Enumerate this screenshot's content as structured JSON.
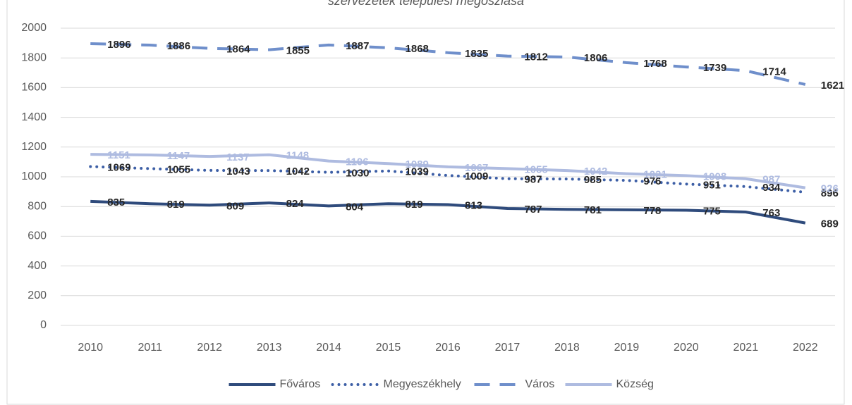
{
  "chart_data": {
    "type": "line",
    "title": "szervezetek települési megoszlása",
    "categories": [
      "2010",
      "2011",
      "2012",
      "2013",
      "2014",
      "2015",
      "2016",
      "2017",
      "2018",
      "2019",
      "2020",
      "2021",
      "2022"
    ],
    "series": [
      {
        "name": "Főváros",
        "color": "#2f4b7c",
        "dash": "solid",
        "label_color": "#262626",
        "values": [
          835,
          819,
          809,
          824,
          804,
          819,
          813,
          787,
          781,
          778,
          775,
          763,
          689
        ]
      },
      {
        "name": "Megyeszékhely",
        "color": "#3d5fa6",
        "dash": "dot",
        "label_color": "#262626",
        "values": [
          1069,
          1055,
          1043,
          1042,
          1030,
          1039,
          1009,
          987,
          985,
          976,
          951,
          934,
          896
        ]
      },
      {
        "name": "Város",
        "color": "#6f8fcb",
        "dash": "dash",
        "label_color": "#262626",
        "values": [
          1896,
          1886,
          1864,
          1855,
          1887,
          1868,
          1835,
          1812,
          1806,
          1768,
          1739,
          1714,
          1621
        ]
      },
      {
        "name": "Község",
        "color": "#aebbe0",
        "dash": "solid",
        "label_color": "#aebbe0",
        "values": [
          1151,
          1147,
          1137,
          1148,
          1106,
          1089,
          1067,
          1055,
          1042,
          1021,
          1008,
          987,
          926
        ]
      }
    ],
    "ylim": [
      0,
      2000
    ],
    "yticks": [
      0,
      200,
      400,
      600,
      800,
      1000,
      1200,
      1400,
      1600,
      1800,
      2000
    ],
    "grid": true,
    "legend": "bottom"
  }
}
